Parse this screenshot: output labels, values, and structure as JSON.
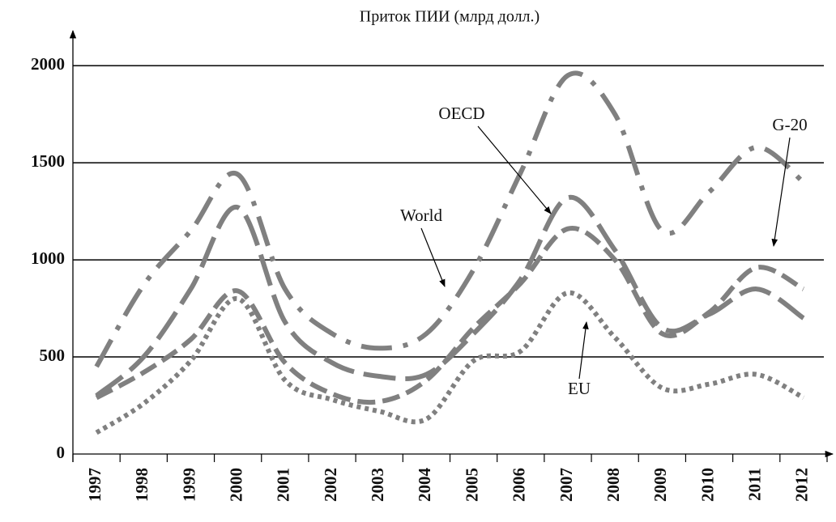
{
  "chart_data": {
    "type": "line",
    "title": "Приток ПИИ (млрд долл.)",
    "categories": [
      "1997",
      "1998",
      "1999",
      "2000",
      "2001",
      "2002",
      "2003",
      "2004",
      "2005",
      "2006",
      "2007",
      "2008",
      "2009",
      "2010",
      "2011",
      "2012"
    ],
    "series": [
      {
        "name": "World",
        "color": "#808080",
        "dash": "dash-dot",
        "values": [
          450,
          870,
          1150,
          1440,
          850,
          620,
          545,
          620,
          950,
          1450,
          1950,
          1750,
          1150,
          1350,
          1580,
          1400
        ]
      },
      {
        "name": "OECD",
        "color": "#808080",
        "dash": "long-dash",
        "values": [
          300,
          500,
          850,
          1270,
          680,
          470,
          400,
          410,
          620,
          900,
          1320,
          1050,
          650,
          720,
          850,
          700
        ]
      },
      {
        "name": "G-20",
        "color": "#808080",
        "dash": "short-dash",
        "values": [
          290,
          420,
          590,
          840,
          470,
          310,
          270,
          380,
          650,
          880,
          1160,
          1000,
          620,
          730,
          960,
          850
        ]
      },
      {
        "name": "EU",
        "color": "#808080",
        "dash": "dotted",
        "values": [
          110,
          260,
          480,
          800,
          380,
          280,
          220,
          180,
          480,
          530,
          830,
          600,
          340,
          360,
          410,
          290
        ]
      }
    ],
    "ylim": [
      0,
      2180
    ],
    "yticks": [
      0,
      500,
      1000,
      1500,
      2000
    ],
    "grid": true
  }
}
